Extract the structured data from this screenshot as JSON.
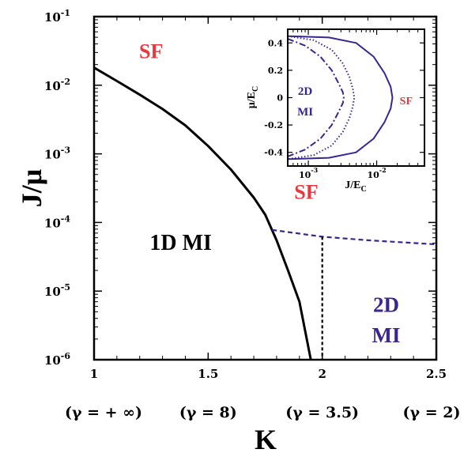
{
  "chart_data": [
    {
      "type": "line",
      "title": "",
      "xlabel": "K",
      "ylabel": "J/μ",
      "xlim": [
        1,
        2.5
      ],
      "ylim": [
        1e-06,
        0.1
      ],
      "yscale": "log",
      "grid": false,
      "xticks": [
        {
          "value": 1,
          "label": "1"
        },
        {
          "value": 1.5,
          "label": "1.5"
        },
        {
          "value": 2,
          "label": "2"
        },
        {
          "value": 2.5,
          "label": "2.5"
        }
      ],
      "yticks": [
        {
          "value": 1e-06,
          "base": "10",
          "exp": "-6"
        },
        {
          "value": 1e-05,
          "base": "10",
          "exp": "-5"
        },
        {
          "value": 0.0001,
          "base": "10",
          "exp": "-4"
        },
        {
          "value": 0.001,
          "base": "10",
          "exp": "-3"
        },
        {
          "value": 0.01,
          "base": "10",
          "exp": "-2"
        },
        {
          "value": 0.1,
          "base": "10",
          "exp": "-1"
        }
      ],
      "gamma_labels": [
        {
          "x": 1,
          "label": "(γ = + ∞)"
        },
        {
          "x": 1.5,
          "label": "(γ = 8)"
        },
        {
          "x": 2,
          "label": "(γ = 3.5)"
        },
        {
          "x": 2.5,
          "label": "(γ = 2)"
        }
      ],
      "series": [
        {
          "style": "solid",
          "color": "#000000",
          "x": [
            1.0,
            1.1,
            1.2,
            1.3,
            1.4,
            1.5,
            1.6,
            1.7,
            1.75,
            1.8,
            1.85,
            1.9,
            1.95
          ],
          "y": [
            0.018,
            0.0115,
            0.0073,
            0.0045,
            0.0026,
            0.0013,
            0.00059,
            0.00023,
            0.00013,
            5.5e-05,
            2e-05,
            7e-06,
            1e-06
          ]
        },
        {
          "style": "dashed",
          "color": "#3a2591",
          "x": [
            1.78,
            2.0,
            2.2,
            2.5
          ],
          "y": [
            7.8e-05,
            6.2e-05,
            5.5e-05,
            4.8e-05
          ]
        },
        {
          "style": "short-dashed",
          "color": "#000000",
          "x": [
            2.0,
            2.0
          ],
          "y": [
            6.2e-05,
            1e-06
          ]
        }
      ],
      "regions": [
        {
          "label": "SF",
          "x": 1.25,
          "y": 0.025,
          "color": "#e8383d",
          "size": 26
        },
        {
          "label": "SF",
          "x": 1.93,
          "y": 0.00022,
          "color": "#e8383d",
          "size": 26
        },
        {
          "label": "1D MI",
          "x": 1.38,
          "y": 4e-05,
          "color": "#000000",
          "size": 28
        },
        {
          "label": "2D",
          "x": 2.28,
          "y": 5e-06,
          "color": "#3a2591",
          "size": 27
        },
        {
          "label": "MI",
          "x": 2.28,
          "y": 1.8e-06,
          "color": "#3a2591",
          "size": 27
        }
      ]
    },
    {
      "type": "line",
      "title": "",
      "xlabel": "J/E_C",
      "ylabel": "μ/E_C",
      "xlim": [
        0.0005,
        0.05
      ],
      "ylim": [
        -0.5,
        0.5
      ],
      "xscale": "log",
      "grid": false,
      "xticks": [
        {
          "value": 0.001,
          "base": "10",
          "exp": "-3"
        },
        {
          "value": 0.01,
          "base": "10",
          "exp": "-2"
        }
      ],
      "yticks": [
        {
          "value": 0.4,
          "label": "0.4"
        },
        {
          "value": 0.2,
          "label": "0.2"
        },
        {
          "value": 0,
          "label": "0"
        },
        {
          "value": -0.2,
          "label": "-0.2"
        },
        {
          "value": -0.4,
          "label": "-0.4"
        }
      ],
      "series": [
        {
          "style": "solid",
          "color": "#3a2591",
          "x": [
            0.0005,
            0.002,
            0.005,
            0.009,
            0.013,
            0.016,
            0.017,
            0.016,
            0.013,
            0.009,
            0.005,
            0.002,
            0.0005
          ],
          "y": [
            0.45,
            0.44,
            0.4,
            0.3,
            0.18,
            0.08,
            0,
            -0.08,
            -0.18,
            -0.3,
            -0.4,
            -0.44,
            -0.45
          ]
        },
        {
          "style": "dotted",
          "color": "#3a2591",
          "x": [
            0.0005,
            0.0012,
            0.0022,
            0.0032,
            0.004,
            0.0045,
            0.0047,
            0.0045,
            0.004,
            0.0032,
            0.0022,
            0.0012,
            0.0005
          ],
          "y": [
            0.45,
            0.42,
            0.35,
            0.25,
            0.15,
            0.06,
            0,
            -0.06,
            -0.15,
            -0.25,
            -0.35,
            -0.42,
            -0.45
          ]
        },
        {
          "style": "dash-dot",
          "color": "#3a2591",
          "x": [
            0.0005,
            0.0009,
            0.0015,
            0.0022,
            0.0028,
            0.0032,
            0.0033,
            0.0032,
            0.0028,
            0.0022,
            0.0015,
            0.0009,
            0.0005
          ],
          "y": [
            0.43,
            0.38,
            0.3,
            0.2,
            0.1,
            0.04,
            0,
            -0.04,
            -0.1,
            -0.2,
            -0.3,
            -0.38,
            -0.43
          ]
        }
      ],
      "regions": [
        {
          "label": "2D",
          "x": 0.0009,
          "y": 0.05,
          "color": "#3a2591",
          "size": 15
        },
        {
          "label": "MI",
          "x": 0.0009,
          "y": -0.1,
          "color": "#3a2591",
          "size": 15
        },
        {
          "label": "SF",
          "x": 0.027,
          "y": -0.02,
          "color": "#e8383d",
          "size": 14
        }
      ]
    }
  ]
}
